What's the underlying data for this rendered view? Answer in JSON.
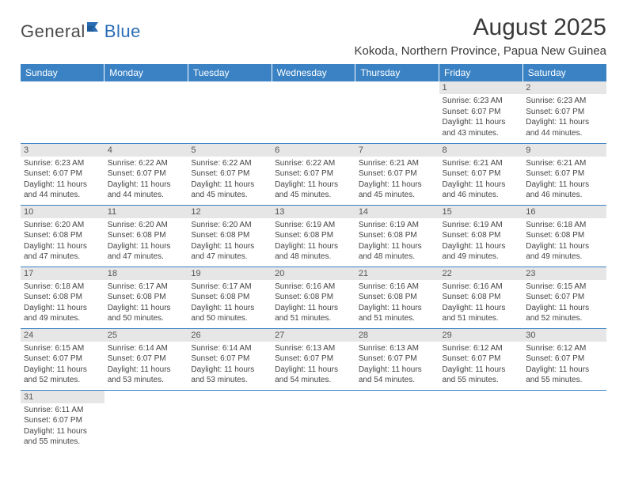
{
  "logo": {
    "part1": "General",
    "part2": "Blue"
  },
  "title": "August 2025",
  "location": "Kokoda, Northern Province, Papua New Guinea",
  "colors": {
    "header_bg": "#3a82c4",
    "header_text": "#ffffff",
    "daynum_bg": "#e6e6e6",
    "cell_border": "#3a82c4",
    "body_text": "#444444",
    "logo_gray": "#4a4a4a",
    "logo_blue": "#2a6db5"
  },
  "daysOfWeek": [
    "Sunday",
    "Monday",
    "Tuesday",
    "Wednesday",
    "Thursday",
    "Friday",
    "Saturday"
  ],
  "startOffset": 5,
  "daysInMonth": 31,
  "cells": [
    {
      "n": 1,
      "sr": "6:23 AM",
      "ss": "6:07 PM",
      "dl": "11 hours and 43 minutes."
    },
    {
      "n": 2,
      "sr": "6:23 AM",
      "ss": "6:07 PM",
      "dl": "11 hours and 44 minutes."
    },
    {
      "n": 3,
      "sr": "6:23 AM",
      "ss": "6:07 PM",
      "dl": "11 hours and 44 minutes."
    },
    {
      "n": 4,
      "sr": "6:22 AM",
      "ss": "6:07 PM",
      "dl": "11 hours and 44 minutes."
    },
    {
      "n": 5,
      "sr": "6:22 AM",
      "ss": "6:07 PM",
      "dl": "11 hours and 45 minutes."
    },
    {
      "n": 6,
      "sr": "6:22 AM",
      "ss": "6:07 PM",
      "dl": "11 hours and 45 minutes."
    },
    {
      "n": 7,
      "sr": "6:21 AM",
      "ss": "6:07 PM",
      "dl": "11 hours and 45 minutes."
    },
    {
      "n": 8,
      "sr": "6:21 AM",
      "ss": "6:07 PM",
      "dl": "11 hours and 46 minutes."
    },
    {
      "n": 9,
      "sr": "6:21 AM",
      "ss": "6:07 PM",
      "dl": "11 hours and 46 minutes."
    },
    {
      "n": 10,
      "sr": "6:20 AM",
      "ss": "6:08 PM",
      "dl": "11 hours and 47 minutes."
    },
    {
      "n": 11,
      "sr": "6:20 AM",
      "ss": "6:08 PM",
      "dl": "11 hours and 47 minutes."
    },
    {
      "n": 12,
      "sr": "6:20 AM",
      "ss": "6:08 PM",
      "dl": "11 hours and 47 minutes."
    },
    {
      "n": 13,
      "sr": "6:19 AM",
      "ss": "6:08 PM",
      "dl": "11 hours and 48 minutes."
    },
    {
      "n": 14,
      "sr": "6:19 AM",
      "ss": "6:08 PM",
      "dl": "11 hours and 48 minutes."
    },
    {
      "n": 15,
      "sr": "6:19 AM",
      "ss": "6:08 PM",
      "dl": "11 hours and 49 minutes."
    },
    {
      "n": 16,
      "sr": "6:18 AM",
      "ss": "6:08 PM",
      "dl": "11 hours and 49 minutes."
    },
    {
      "n": 17,
      "sr": "6:18 AM",
      "ss": "6:08 PM",
      "dl": "11 hours and 49 minutes."
    },
    {
      "n": 18,
      "sr": "6:17 AM",
      "ss": "6:08 PM",
      "dl": "11 hours and 50 minutes."
    },
    {
      "n": 19,
      "sr": "6:17 AM",
      "ss": "6:08 PM",
      "dl": "11 hours and 50 minutes."
    },
    {
      "n": 20,
      "sr": "6:16 AM",
      "ss": "6:08 PM",
      "dl": "11 hours and 51 minutes."
    },
    {
      "n": 21,
      "sr": "6:16 AM",
      "ss": "6:08 PM",
      "dl": "11 hours and 51 minutes."
    },
    {
      "n": 22,
      "sr": "6:16 AM",
      "ss": "6:08 PM",
      "dl": "11 hours and 51 minutes."
    },
    {
      "n": 23,
      "sr": "6:15 AM",
      "ss": "6:07 PM",
      "dl": "11 hours and 52 minutes."
    },
    {
      "n": 24,
      "sr": "6:15 AM",
      "ss": "6:07 PM",
      "dl": "11 hours and 52 minutes."
    },
    {
      "n": 25,
      "sr": "6:14 AM",
      "ss": "6:07 PM",
      "dl": "11 hours and 53 minutes."
    },
    {
      "n": 26,
      "sr": "6:14 AM",
      "ss": "6:07 PM",
      "dl": "11 hours and 53 minutes."
    },
    {
      "n": 27,
      "sr": "6:13 AM",
      "ss": "6:07 PM",
      "dl": "11 hours and 54 minutes."
    },
    {
      "n": 28,
      "sr": "6:13 AM",
      "ss": "6:07 PM",
      "dl": "11 hours and 54 minutes."
    },
    {
      "n": 29,
      "sr": "6:12 AM",
      "ss": "6:07 PM",
      "dl": "11 hours and 55 minutes."
    },
    {
      "n": 30,
      "sr": "6:12 AM",
      "ss": "6:07 PM",
      "dl": "11 hours and 55 minutes."
    },
    {
      "n": 31,
      "sr": "6:11 AM",
      "ss": "6:07 PM",
      "dl": "11 hours and 55 minutes."
    }
  ],
  "labels": {
    "sunrise": "Sunrise:",
    "sunset": "Sunset:",
    "daylight": "Daylight:"
  }
}
